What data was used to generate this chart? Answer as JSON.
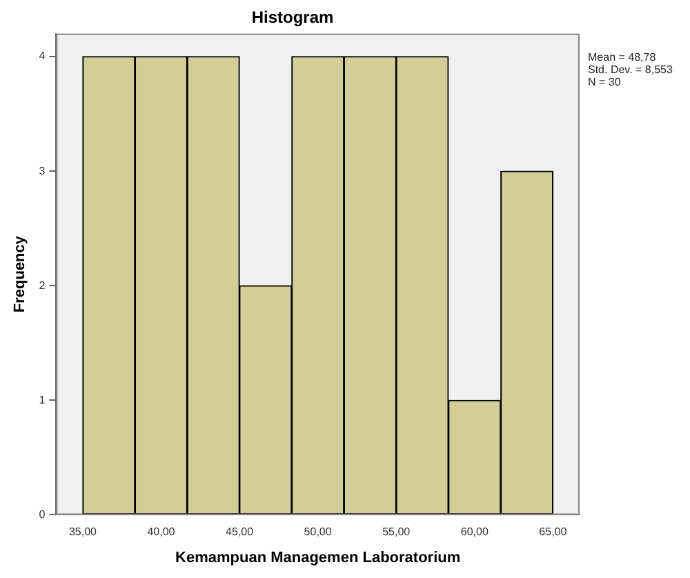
{
  "chart_data": {
    "type": "histogram",
    "title": "Histogram",
    "xlabel": "Kemampuan Managemen Laboratorium",
    "ylabel": "Frequency",
    "bins": [
      35,
      38.33,
      41.67,
      45,
      48.33,
      51.67,
      55,
      58.33,
      61.67,
      65
    ],
    "values": [
      4,
      4,
      4,
      2,
      4,
      4,
      4,
      1,
      3
    ],
    "color": "#d3ce97",
    "xlim": [
      33.3,
      66.7
    ],
    "xticks": [
      {
        "value": 35,
        "label": "35,00"
      },
      {
        "value": 40,
        "label": "40,00"
      },
      {
        "value": 45,
        "label": "45,00"
      },
      {
        "value": 50,
        "label": "50,00"
      },
      {
        "value": 55,
        "label": "55,00"
      },
      {
        "value": 60,
        "label": "60,00"
      },
      {
        "value": 65,
        "label": "65,00"
      }
    ],
    "ylim": [
      0,
      4.2
    ],
    "yticks": [
      0,
      1,
      2,
      3,
      4
    ],
    "annotations": [
      "Mean = 48,78",
      "Std. Dev. = 8,553",
      "N = 30"
    ],
    "grid": false,
    "legend": false
  }
}
